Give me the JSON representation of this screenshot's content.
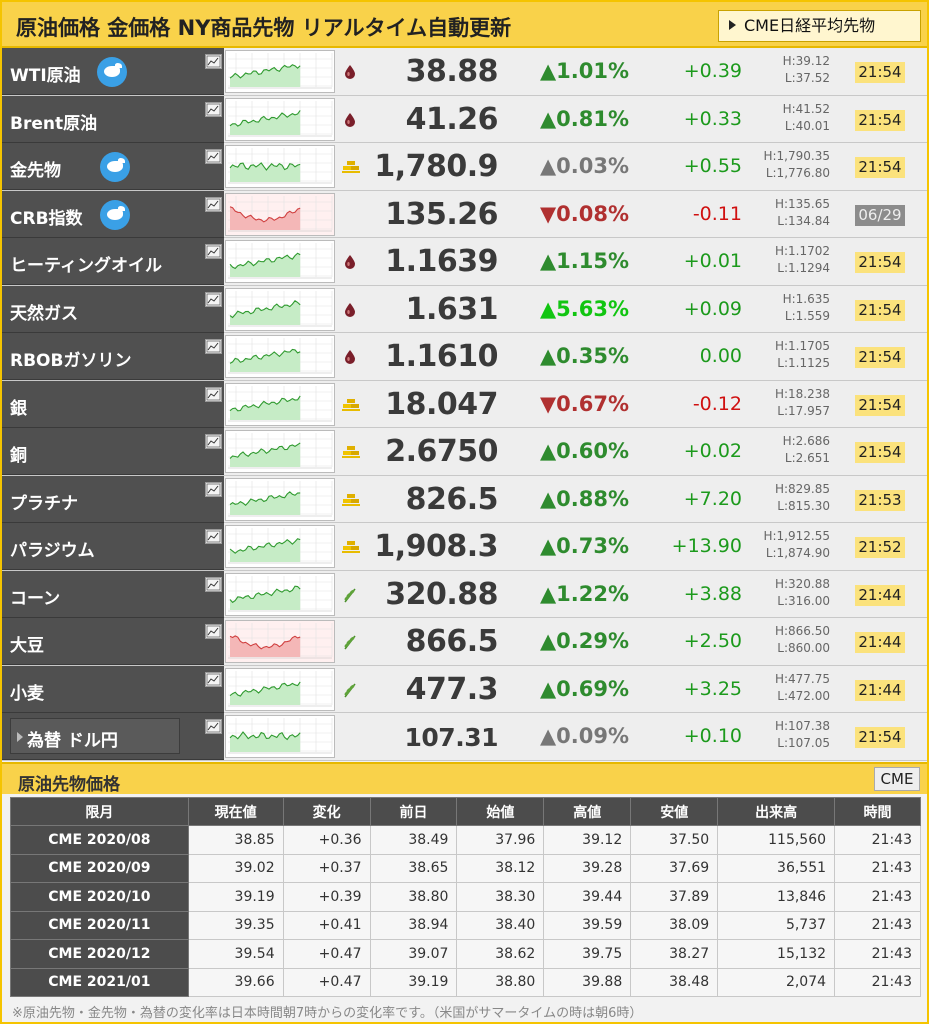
{
  "header": {
    "title": "原油価格 金価格 NY商品先物 リアルタイム自動更新",
    "button_label": "CME日経平均先物"
  },
  "rows": [
    {
      "name": "WTI原油",
      "twitter": true,
      "category": "oil",
      "trend": "up",
      "price": "38.88",
      "pct": "▲1.01%",
      "pct_style": "up",
      "change": "+0.39",
      "change_style": "up",
      "high": "H:39.12",
      "low": "L:37.52",
      "time": "21:54",
      "time_style": "now"
    },
    {
      "name": "Brent原油",
      "twitter": false,
      "category": "oil",
      "trend": "up",
      "price": "41.26",
      "pct": "▲0.81%",
      "pct_style": "up",
      "change": "+0.33",
      "change_style": "up",
      "high": "H:41.52",
      "low": "L:40.01",
      "time": "21:54",
      "time_style": "now"
    },
    {
      "name": "金先物",
      "twitter": true,
      "category": "metal",
      "trend": "flat",
      "price": "1,780.9",
      "pct": "▲0.03%",
      "pct_style": "flat",
      "change": "+0.55",
      "change_style": "up",
      "high": "H:1,790.35",
      "low": "L:1,776.80",
      "time": "21:54",
      "time_style": "now"
    },
    {
      "name": "CRB指数",
      "twitter": true,
      "category": "none",
      "trend": "down",
      "price": "135.26",
      "pct": "▼0.08%",
      "pct_style": "dn",
      "change": "-0.11",
      "change_style": "dn",
      "high": "H:135.65",
      "low": "L:134.84",
      "time": "06/29",
      "time_style": "old"
    },
    {
      "name": "ヒーティングオイル",
      "twitter": false,
      "category": "oil",
      "trend": "up",
      "price": "1.1639",
      "pct": "▲1.15%",
      "pct_style": "up",
      "change": "+0.01",
      "change_style": "up",
      "high": "H:1.1702",
      "low": "L:1.1294",
      "time": "21:54",
      "time_style": "now"
    },
    {
      "name": "天然ガス",
      "twitter": false,
      "category": "oil",
      "trend": "up",
      "price": "1.631",
      "pct": "▲5.63%",
      "pct_style": "big",
      "change": "+0.09",
      "change_style": "up",
      "high": "H:1.635",
      "low": "L:1.559",
      "time": "21:54",
      "time_style": "now"
    },
    {
      "name": "RBOBガソリン",
      "twitter": false,
      "category": "oil",
      "trend": "up",
      "price": "1.1610",
      "pct": "▲0.35%",
      "pct_style": "up",
      "change": "0.00",
      "change_style": "zero",
      "high": "H:1.1705",
      "low": "L:1.1125",
      "time": "21:54",
      "time_style": "now"
    },
    {
      "name": "銀",
      "twitter": false,
      "category": "metal",
      "trend": "up",
      "price": "18.047",
      "pct": "▼0.67%",
      "pct_style": "dn",
      "change": "-0.12",
      "change_style": "dn",
      "high": "H:18.238",
      "low": "L:17.957",
      "time": "21:54",
      "time_style": "now"
    },
    {
      "name": "銅",
      "twitter": false,
      "category": "metal",
      "trend": "up",
      "price": "2.6750",
      "pct": "▲0.60%",
      "pct_style": "up",
      "change": "+0.02",
      "change_style": "up",
      "high": "H:2.686",
      "low": "L:2.651",
      "time": "21:54",
      "time_style": "now"
    },
    {
      "name": "プラチナ",
      "twitter": false,
      "category": "metal",
      "trend": "up",
      "price": "826.5",
      "pct": "▲0.88%",
      "pct_style": "up",
      "change": "+7.20",
      "change_style": "up",
      "high": "H:829.85",
      "low": "L:815.30",
      "time": "21:53",
      "time_style": "now"
    },
    {
      "name": "パラジウム",
      "twitter": false,
      "category": "metal",
      "trend": "up",
      "price": "1,908.3",
      "pct": "▲0.73%",
      "pct_style": "up",
      "change": "+13.90",
      "change_style": "up",
      "high": "H:1,912.55",
      "low": "L:1,874.90",
      "time": "21:52",
      "time_style": "now"
    },
    {
      "name": "コーン",
      "twitter": false,
      "category": "grain",
      "trend": "up",
      "price": "320.88",
      "pct": "▲1.22%",
      "pct_style": "up",
      "change": "+3.88",
      "change_style": "up",
      "high": "H:320.88",
      "low": "L:316.00",
      "time": "21:44",
      "time_style": "now"
    },
    {
      "name": "大豆",
      "twitter": false,
      "category": "grain",
      "trend": "down",
      "price": "866.5",
      "pct": "▲0.29%",
      "pct_style": "up",
      "change": "+2.50",
      "change_style": "up",
      "high": "H:866.50",
      "low": "L:860.00",
      "time": "21:44",
      "time_style": "now"
    },
    {
      "name": "小麦",
      "twitter": false,
      "category": "grain",
      "trend": "up",
      "price": "477.3",
      "pct": "▲0.69%",
      "pct_style": "up",
      "change": "+3.25",
      "change_style": "up",
      "high": "H:477.75",
      "low": "L:472.00",
      "time": "21:44",
      "time_style": "now"
    },
    {
      "name": "為替 ドル円",
      "twitter": false,
      "category": "none",
      "trend": "flat",
      "fx": true,
      "price": "107.31",
      "pct": "▲0.09%",
      "pct_style": "flat",
      "change": "+0.10",
      "change_style": "up",
      "high": "H:107.38",
      "low": "L:107.05",
      "time": "21:54",
      "time_style": "now"
    }
  ],
  "futures": {
    "title": "原油先物価格",
    "cme_button": "CME",
    "columns": [
      "限月",
      "現在値",
      "変化",
      "前日",
      "始値",
      "高値",
      "安値",
      "出来高",
      "時間"
    ],
    "rows": [
      [
        "CME 2020/08",
        "38.85",
        "+0.36",
        "38.49",
        "37.96",
        "39.12",
        "37.50",
        "115,560",
        "21:43"
      ],
      [
        "CME 2020/09",
        "39.02",
        "+0.37",
        "38.65",
        "38.12",
        "39.28",
        "37.69",
        "36,551",
        "21:43"
      ],
      [
        "CME 2020/10",
        "39.19",
        "+0.39",
        "38.80",
        "38.30",
        "39.44",
        "37.89",
        "13,846",
        "21:43"
      ],
      [
        "CME 2020/11",
        "39.35",
        "+0.41",
        "38.94",
        "38.40",
        "39.59",
        "38.09",
        "5,737",
        "21:43"
      ],
      [
        "CME 2020/12",
        "39.54",
        "+0.47",
        "39.07",
        "38.62",
        "39.75",
        "38.27",
        "15,132",
        "21:43"
      ],
      [
        "CME 2021/01",
        "39.66",
        "+0.47",
        "39.19",
        "38.80",
        "39.88",
        "38.48",
        "2,074",
        "21:43"
      ]
    ]
  },
  "footnote": "※原油先物・金先物・為替の変化率は日本時間朝7時からの変化率です。（米国がサマータイムの時は朝6時）"
}
